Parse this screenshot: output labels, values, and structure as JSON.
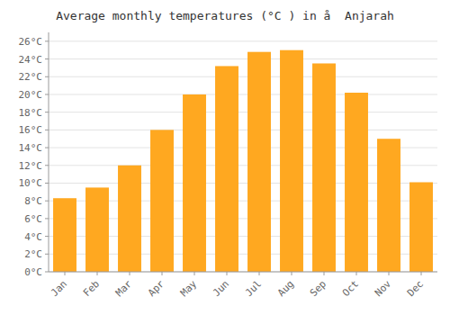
{
  "chart_data": {
    "type": "bar",
    "title": "Average monthly temperatures (°C ) in å  Anjarah",
    "categories": [
      "Jan",
      "Feb",
      "Mar",
      "Apr",
      "May",
      "Jun",
      "Jul",
      "Aug",
      "Sep",
      "Oct",
      "Nov",
      "Dec"
    ],
    "values": [
      8.3,
      9.5,
      12.0,
      16.0,
      20.0,
      23.2,
      24.8,
      25.0,
      23.5,
      20.2,
      15.0,
      10.1
    ],
    "color": "#FFA820",
    "ylim": [
      0,
      27
    ],
    "yticks": [
      {
        "value": 0,
        "label": "0°C"
      },
      {
        "value": 2,
        "label": "2°C"
      },
      {
        "value": 4,
        "label": "4°C"
      },
      {
        "value": 6,
        "label": "6°C"
      },
      {
        "value": 8,
        "label": "8°C"
      },
      {
        "value": 10,
        "label": "10°C"
      },
      {
        "value": 12,
        "label": "12°C"
      },
      {
        "value": 14,
        "label": "14°C"
      },
      {
        "value": 16,
        "label": "16°C"
      },
      {
        "value": 18,
        "label": "18°C"
      },
      {
        "value": 20,
        "label": "20°C"
      },
      {
        "value": 22,
        "label": "22°C"
      },
      {
        "value": 24,
        "label": "24°C"
      },
      {
        "value": 26,
        "label": "26°C"
      }
    ],
    "grid": true
  }
}
